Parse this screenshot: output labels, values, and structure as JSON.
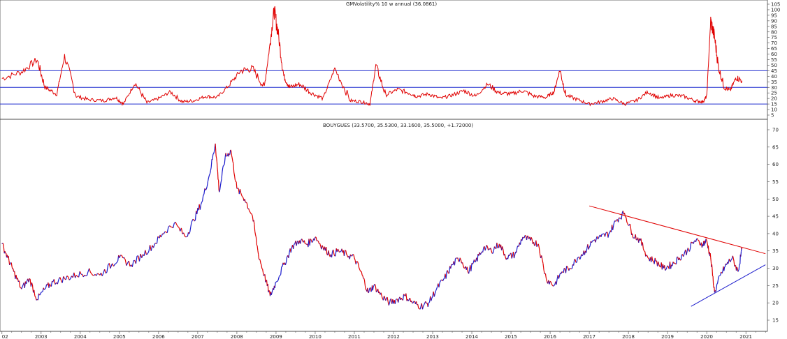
{
  "chart_data": [
    {
      "type": "line",
      "title": "GMVolatility% 10 w annual (36.0861)",
      "ylim": [
        5,
        105
      ],
      "yticks": [
        5,
        10,
        15,
        20,
        25,
        30,
        35,
        40,
        45,
        50,
        55,
        60,
        65,
        70,
        75,
        80,
        85,
        90,
        95,
        100,
        105
      ],
      "reference_lines": [
        15,
        30,
        45
      ],
      "reference_line_color": "#1f2ccf",
      "series": [
        {
          "color": "#e00000",
          "x": [
            2002.0,
            2002.5,
            2002.9,
            2003.1,
            2003.4,
            2003.6,
            2003.9,
            2004.2,
            2004.6,
            2004.9,
            2005.1,
            2005.4,
            2005.7,
            2006.0,
            2006.3,
            2006.6,
            2006.9,
            2007.2,
            2007.5,
            2007.8,
            2008.1,
            2008.4,
            2008.7,
            2008.85,
            2008.95,
            2009.05,
            2009.2,
            2009.35,
            2009.6,
            2009.9,
            2010.2,
            2010.5,
            2010.9,
            2011.2,
            2011.4,
            2011.55,
            2011.8,
            2012.1,
            2012.4,
            2012.6,
            2012.9,
            2013.2,
            2013.5,
            2013.8,
            2014.1,
            2014.4,
            2014.7,
            2015.0,
            2015.3,
            2015.6,
            2015.9,
            2016.1,
            2016.25,
            2016.4,
            2016.7,
            2017.0,
            2017.3,
            2017.6,
            2017.9,
            2018.2,
            2018.5,
            2018.8,
            2019.1,
            2019.4,
            2019.7,
            2019.9,
            2020.0,
            2020.1,
            2020.2,
            2020.3,
            2020.45,
            2020.6,
            2020.75,
            2020.9
          ],
          "values": [
            38,
            44,
            55,
            30,
            24,
            58,
            22,
            19,
            18,
            21,
            15,
            34,
            16,
            20,
            26,
            17,
            18,
            22,
            21,
            32,
            45,
            47,
            30,
            70,
            100,
            80,
            40,
            30,
            33,
            25,
            20,
            47,
            18,
            17,
            15,
            50,
            23,
            28,
            25,
            22,
            24,
            20,
            23,
            27,
            22,
            33,
            25,
            24,
            27,
            22,
            21,
            26,
            46,
            23,
            19,
            15,
            17,
            20,
            15,
            18,
            26,
            20,
            23,
            22,
            18,
            17,
            22,
            90,
            75,
            48,
            30,
            27,
            39,
            36
          ]
        }
      ]
    },
    {
      "type": "line",
      "title": "BOUYGUES (33.5700, 35.5300, 33.1600, 35.5000, +1.72000)",
      "ylim": [
        15,
        70
      ],
      "yticks": [
        15,
        20,
        25,
        30,
        35,
        40,
        45,
        50,
        55,
        60,
        65,
        70
      ],
      "xlabel": "",
      "xticks": [
        "02",
        "2003",
        "2004",
        "2005",
        "2006",
        "2007",
        "2008",
        "2009",
        "2010",
        "2011",
        "2012",
        "2013",
        "2014",
        "2015",
        "2016",
        "2017",
        "2018",
        "2019",
        "2020",
        "2021"
      ],
      "xtick_values": [
        2002,
        2003,
        2004,
        2005,
        2006,
        2007,
        2008,
        2009,
        2010,
        2011,
        2012,
        2013,
        2014,
        2015,
        2016,
        2017,
        2018,
        2019,
        2020,
        2021
      ],
      "xlim": [
        2001.95,
        2021.55
      ],
      "up_color": "#1a1acc",
      "down_color": "#e00000",
      "series": [
        {
          "x": [
            2002.0,
            2002.15,
            2002.3,
            2002.5,
            2002.7,
            2002.9,
            2003.1,
            2003.3,
            2003.6,
            2003.9,
            2004.2,
            2004.5,
            2004.8,
            2005.0,
            2005.3,
            2005.6,
            2005.9,
            2006.1,
            2006.4,
            2006.7,
            2006.9,
            2007.1,
            2007.3,
            2007.45,
            2007.55,
            2007.7,
            2007.85,
            2008.0,
            2008.2,
            2008.4,
            2008.55,
            2008.7,
            2008.85,
            2009.0,
            2009.2,
            2009.4,
            2009.6,
            2009.8,
            2010.0,
            2010.2,
            2010.4,
            2010.6,
            2010.8,
            2011.0,
            2011.2,
            2011.35,
            2011.5,
            2011.7,
            2011.9,
            2012.1,
            2012.3,
            2012.5,
            2012.7,
            2012.9,
            2013.1,
            2013.3,
            2013.5,
            2013.7,
            2013.9,
            2014.1,
            2014.3,
            2014.5,
            2014.7,
            2014.9,
            2015.1,
            2015.3,
            2015.5,
            2015.7,
            2015.9,
            2016.1,
            2016.3,
            2016.5,
            2016.7,
            2016.9,
            2017.1,
            2017.3,
            2017.5,
            2017.7,
            2017.9,
            2018.1,
            2018.3,
            2018.5,
            2018.7,
            2018.9,
            2019.1,
            2019.3,
            2019.5,
            2019.7,
            2019.9,
            2020.0,
            2020.1,
            2020.2,
            2020.35,
            2020.5,
            2020.65,
            2020.8,
            2020.9
          ],
          "values": [
            37,
            33,
            29,
            24,
            27,
            21,
            24,
            26,
            27,
            28,
            29,
            28,
            31,
            33,
            31,
            34,
            37,
            40,
            43,
            39,
            44,
            49,
            57,
            66,
            52,
            62,
            64,
            53,
            50,
            45,
            34,
            28,
            22,
            26,
            31,
            36,
            38,
            37,
            39,
            36,
            34,
            35,
            34,
            33,
            28,
            23,
            25,
            22,
            20,
            21,
            22,
            20,
            19,
            20,
            24,
            27,
            31,
            33,
            29,
            32,
            36,
            35,
            37,
            33,
            34,
            39,
            38,
            37,
            27,
            25,
            29,
            30,
            33,
            35,
            38,
            39,
            40,
            44,
            46,
            40,
            38,
            33,
            32,
            30,
            31,
            33,
            35,
            38,
            37,
            38,
            33,
            23,
            28,
            31,
            33,
            29,
            35.5
          ]
        }
      ],
      "trendlines": [
        {
          "color": "#e00000",
          "x": [
            2017.0,
            2021.5
          ],
          "values": [
            48,
            34.2
          ]
        },
        {
          "color": "#1a1acc",
          "x": [
            2019.6,
            2021.5
          ],
          "values": [
            19,
            31
          ]
        }
      ]
    }
  ]
}
